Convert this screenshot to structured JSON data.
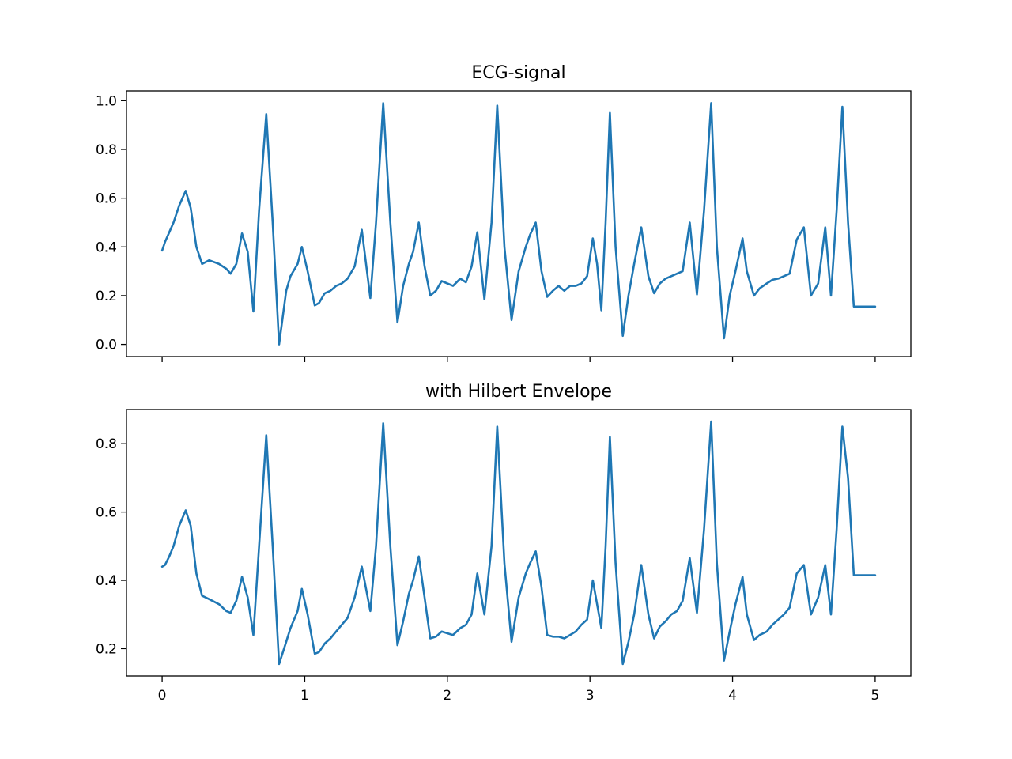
{
  "chart_data": [
    {
      "type": "line",
      "title": "ECG-signal",
      "xlabel": "",
      "ylabel": "",
      "xlim": [
        -0.25,
        5.25
      ],
      "ylim": [
        -0.05,
        1.04
      ],
      "xticks": [
        0,
        1,
        2,
        3,
        4,
        5
      ],
      "xtick_labels_visible": false,
      "yticks": [
        0.0,
        0.2,
        0.4,
        0.6,
        0.8,
        1.0
      ],
      "ytick_labels": [
        "0.0",
        "0.2",
        "0.4",
        "0.6",
        "0.8",
        "1.0"
      ],
      "grid": false,
      "series": [
        {
          "color": "#1f77b4",
          "x": [
            0,
            0.02,
            0.05,
            0.08,
            0.12,
            0.165,
            0.2,
            0.24,
            0.28,
            0.33,
            0.4,
            0.45,
            0.48,
            0.52,
            0.56,
            0.6,
            0.64,
            0.68,
            0.73,
            0.775,
            0.82,
            0.87,
            0.9,
            0.95,
            0.98,
            1.02,
            1.07,
            1.1,
            1.14,
            1.18,
            1.22,
            1.26,
            1.3,
            1.35,
            1.4,
            1.46,
            1.5,
            1.55,
            1.6,
            1.65,
            1.69,
            1.73,
            1.76,
            1.8,
            1.84,
            1.88,
            1.92,
            1.96,
            2.0,
            2.04,
            2.09,
            2.13,
            2.17,
            2.21,
            2.26,
            2.31,
            2.35,
            2.4,
            2.45,
            2.5,
            2.55,
            2.58,
            2.62,
            2.66,
            2.7,
            2.74,
            2.78,
            2.82,
            2.86,
            2.9,
            2.94,
            2.98,
            3.02,
            3.05,
            3.08,
            3.11,
            3.14,
            3.18,
            3.23,
            3.27,
            3.31,
            3.36,
            3.41,
            3.45,
            3.49,
            3.53,
            3.57,
            3.61,
            3.65,
            3.7,
            3.75,
            3.8,
            3.85,
            3.89,
            3.94,
            3.98,
            4.02,
            4.07,
            4.1,
            4.15,
            4.19,
            4.24,
            4.28,
            4.32,
            4.36,
            4.4,
            4.45,
            4.5,
            4.55,
            4.6,
            4.65,
            4.69,
            4.73,
            4.77,
            4.81,
            4.85,
            4.89,
            4.93,
            4.97,
            5.0
          ],
          "y": [
            0.385,
            0.42,
            0.46,
            0.5,
            0.57,
            0.63,
            0.56,
            0.4,
            0.33,
            0.345,
            0.33,
            0.31,
            0.29,
            0.33,
            0.455,
            0.38,
            0.135,
            0.55,
            0.945,
            0.5,
            0.0,
            0.22,
            0.28,
            0.33,
            0.4,
            0.3,
            0.16,
            0.17,
            0.21,
            0.22,
            0.24,
            0.25,
            0.27,
            0.32,
            0.47,
            0.19,
            0.5,
            0.99,
            0.5,
            0.09,
            0.24,
            0.33,
            0.38,
            0.5,
            0.32,
            0.2,
            0.22,
            0.26,
            0.25,
            0.24,
            0.27,
            0.255,
            0.32,
            0.46,
            0.185,
            0.5,
            0.98,
            0.4,
            0.1,
            0.3,
            0.4,
            0.45,
            0.5,
            0.3,
            0.195,
            0.22,
            0.24,
            0.22,
            0.24,
            0.24,
            0.25,
            0.28,
            0.435,
            0.33,
            0.14,
            0.5,
            0.95,
            0.4,
            0.035,
            0.2,
            0.33,
            0.48,
            0.28,
            0.21,
            0.25,
            0.27,
            0.28,
            0.29,
            0.3,
            0.5,
            0.205,
            0.55,
            0.99,
            0.4,
            0.025,
            0.2,
            0.3,
            0.435,
            0.3,
            0.2,
            0.23,
            0.25,
            0.265,
            0.27,
            0.28,
            0.29,
            0.43,
            0.48,
            0.2,
            0.25,
            0.48,
            0.2,
            0.55,
            0.975,
            0.5,
            0.155,
            0.155,
            0.155,
            0.155,
            0.155
          ]
        }
      ]
    },
    {
      "type": "line",
      "title": "with Hilbert Envelope",
      "xlabel": "",
      "ylabel": "",
      "xlim": [
        -0.25,
        5.25
      ],
      "ylim": [
        0.12,
        0.9
      ],
      "xticks": [
        0,
        1,
        2,
        3,
        4,
        5
      ],
      "xtick_labels": [
        "0",
        "1",
        "2",
        "3",
        "4",
        "5"
      ],
      "yticks": [
        0.2,
        0.4,
        0.6,
        0.8
      ],
      "ytick_labels": [
        "0.2",
        "0.4",
        "0.6",
        "0.8"
      ],
      "grid": false,
      "series": [
        {
          "color": "#1f77b4",
          "x": [
            0,
            0.02,
            0.05,
            0.08,
            0.12,
            0.165,
            0.2,
            0.24,
            0.28,
            0.33,
            0.4,
            0.45,
            0.48,
            0.52,
            0.56,
            0.6,
            0.64,
            0.68,
            0.73,
            0.775,
            0.82,
            0.87,
            0.9,
            0.95,
            0.98,
            1.02,
            1.07,
            1.1,
            1.14,
            1.18,
            1.22,
            1.26,
            1.3,
            1.35,
            1.4,
            1.46,
            1.5,
            1.55,
            1.6,
            1.65,
            1.69,
            1.73,
            1.76,
            1.8,
            1.84,
            1.88,
            1.92,
            1.96,
            2.0,
            2.04,
            2.09,
            2.13,
            2.17,
            2.21,
            2.26,
            2.31,
            2.35,
            2.4,
            2.45,
            2.5,
            2.55,
            2.58,
            2.62,
            2.66,
            2.7,
            2.74,
            2.78,
            2.82,
            2.86,
            2.9,
            2.94,
            2.98,
            3.02,
            3.05,
            3.08,
            3.11,
            3.14,
            3.18,
            3.23,
            3.27,
            3.31,
            3.36,
            3.41,
            3.45,
            3.49,
            3.53,
            3.57,
            3.61,
            3.65,
            3.7,
            3.75,
            3.8,
            3.85,
            3.89,
            3.94,
            3.98,
            4.02,
            4.07,
            4.1,
            4.15,
            4.19,
            4.24,
            4.28,
            4.32,
            4.36,
            4.4,
            4.45,
            4.5,
            4.55,
            4.6,
            4.65,
            4.69,
            4.73,
            4.77,
            4.81,
            4.85,
            4.89,
            4.93,
            4.97,
            5.0
          ],
          "y": [
            0.44,
            0.445,
            0.47,
            0.5,
            0.56,
            0.605,
            0.56,
            0.42,
            0.355,
            0.345,
            0.33,
            0.31,
            0.305,
            0.34,
            0.41,
            0.35,
            0.24,
            0.5,
            0.825,
            0.5,
            0.155,
            0.22,
            0.26,
            0.31,
            0.375,
            0.3,
            0.185,
            0.19,
            0.215,
            0.23,
            0.25,
            0.27,
            0.29,
            0.35,
            0.44,
            0.31,
            0.5,
            0.86,
            0.5,
            0.21,
            0.28,
            0.36,
            0.4,
            0.47,
            0.35,
            0.23,
            0.235,
            0.25,
            0.245,
            0.24,
            0.26,
            0.27,
            0.3,
            0.42,
            0.3,
            0.5,
            0.85,
            0.45,
            0.22,
            0.35,
            0.42,
            0.45,
            0.485,
            0.38,
            0.24,
            0.235,
            0.235,
            0.23,
            0.24,
            0.25,
            0.27,
            0.285,
            0.4,
            0.33,
            0.26,
            0.5,
            0.82,
            0.45,
            0.155,
            0.22,
            0.3,
            0.445,
            0.3,
            0.23,
            0.265,
            0.28,
            0.3,
            0.31,
            0.34,
            0.465,
            0.305,
            0.55,
            0.865,
            0.45,
            0.165,
            0.25,
            0.33,
            0.41,
            0.3,
            0.225,
            0.24,
            0.25,
            0.27,
            0.285,
            0.3,
            0.32,
            0.42,
            0.445,
            0.3,
            0.35,
            0.445,
            0.3,
            0.55,
            0.85,
            0.7,
            0.415,
            0.415,
            0.415,
            0.415,
            0.415
          ]
        }
      ]
    }
  ]
}
